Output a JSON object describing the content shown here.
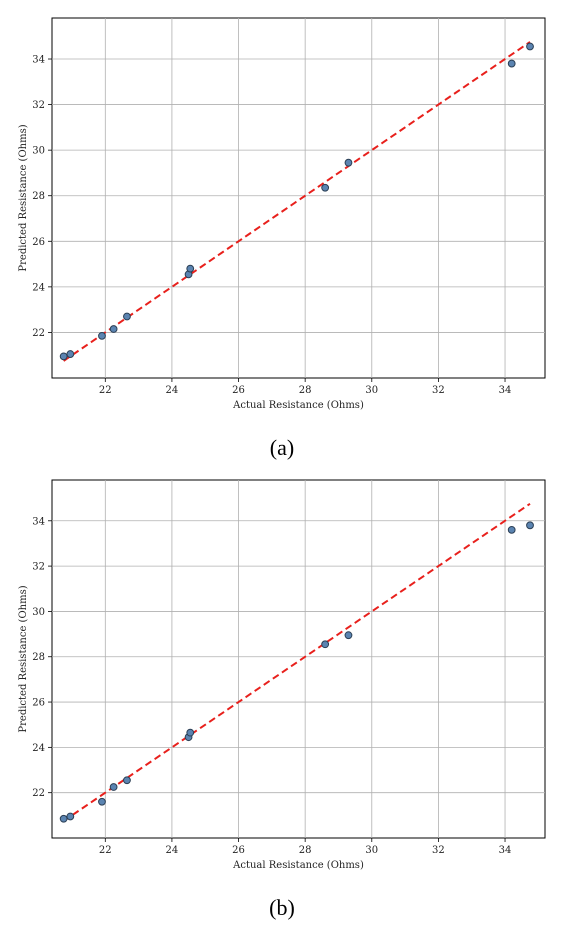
{
  "figure": {
    "panels": [
      {
        "caption": "(a)"
      },
      {
        "caption": "(b)"
      }
    ]
  },
  "chart_data": [
    {
      "type": "scatter",
      "panel": "a",
      "xlabel": "Actual Resistance (Ohms)",
      "ylabel": "Predicted Resistance (Ohms)",
      "xlim": [
        20.4,
        35.2
      ],
      "ylim": [
        20.0,
        35.8
      ],
      "xticks": [
        22,
        24,
        26,
        28,
        30,
        32,
        34
      ],
      "yticks": [
        22,
        24,
        26,
        28,
        30,
        32,
        34
      ],
      "grid": true,
      "points": [
        {
          "x": 20.75,
          "y": 20.95
        },
        {
          "x": 20.95,
          "y": 21.05
        },
        {
          "x": 21.9,
          "y": 21.85
        },
        {
          "x": 22.25,
          "y": 22.15
        },
        {
          "x": 22.65,
          "y": 22.7
        },
        {
          "x": 24.5,
          "y": 24.55
        },
        {
          "x": 24.55,
          "y": 24.8
        },
        {
          "x": 28.6,
          "y": 28.35
        },
        {
          "x": 29.3,
          "y": 29.45
        },
        {
          "x": 34.2,
          "y": 33.8
        },
        {
          "x": 34.75,
          "y": 34.55
        }
      ],
      "reference_line": {
        "x": [
          20.75,
          34.75
        ],
        "y": [
          20.75,
          34.75
        ],
        "style": "dashed"
      },
      "colors": {
        "marker_fill": "#5b84b1",
        "marker_edge": "#2b3f55",
        "line": "#e8201c"
      }
    },
    {
      "type": "scatter",
      "panel": "b",
      "xlabel": "Actual Resistance (Ohms)",
      "ylabel": "Predicted Resistance (Ohms)",
      "xlim": [
        20.4,
        35.2
      ],
      "ylim": [
        20.0,
        35.8
      ],
      "xticks": [
        22,
        24,
        26,
        28,
        30,
        32,
        34
      ],
      "yticks": [
        22,
        24,
        26,
        28,
        30,
        32,
        34
      ],
      "grid": true,
      "points": [
        {
          "x": 20.75,
          "y": 20.85
        },
        {
          "x": 20.95,
          "y": 20.95
        },
        {
          "x": 21.9,
          "y": 21.6
        },
        {
          "x": 22.25,
          "y": 22.25
        },
        {
          "x": 22.65,
          "y": 22.55
        },
        {
          "x": 24.5,
          "y": 24.45
        },
        {
          "x": 24.55,
          "y": 24.65
        },
        {
          "x": 28.6,
          "y": 28.55
        },
        {
          "x": 29.3,
          "y": 28.95
        },
        {
          "x": 34.2,
          "y": 33.6
        },
        {
          "x": 34.75,
          "y": 33.8
        }
      ],
      "reference_line": {
        "x": [
          20.75,
          34.75
        ],
        "y": [
          20.75,
          34.75
        ],
        "style": "dashed"
      },
      "colors": {
        "marker_fill": "#5b84b1",
        "marker_edge": "#2b3f55",
        "line": "#e8201c"
      }
    }
  ]
}
